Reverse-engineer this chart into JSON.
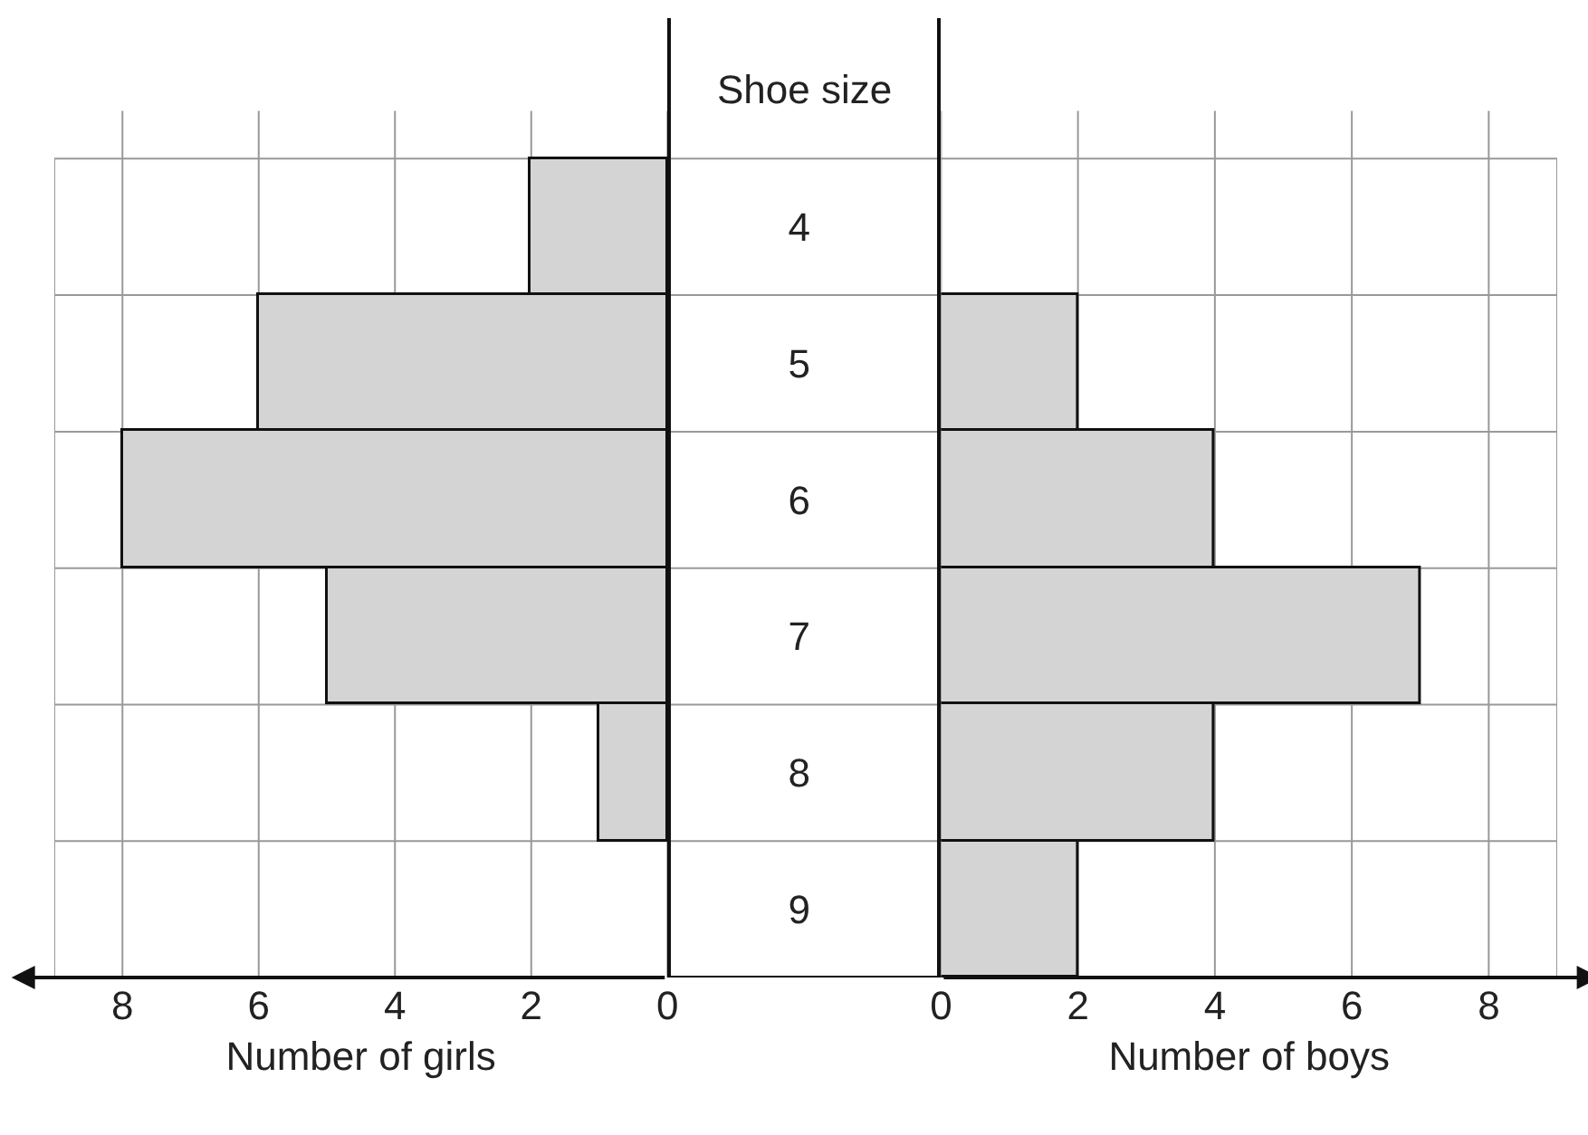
{
  "chart_data": [
    {
      "type": "bar",
      "orientation": "horizontal",
      "categories": [
        "4",
        "5",
        "6",
        "7",
        "8",
        "9"
      ],
      "xlabel": "Number of girls",
      "xlim": [
        9,
        0
      ],
      "xticks": [
        8,
        6,
        4,
        2,
        0
      ],
      "tick_labels": "x",
      "grid": true,
      "series": [
        {
          "color": "#d4d4d4",
          "values": [
            2,
            6,
            8,
            5,
            1,
            0
          ]
        }
      ]
    },
    {
      "type": "bar",
      "orientation": "horizontal",
      "categories": [
        "4",
        "5",
        "6",
        "7",
        "8",
        "9"
      ],
      "xlabel": "Number of boys",
      "ylabel": "Shoe size",
      "xlim": [
        0,
        9
      ],
      "xticks": [
        0,
        2,
        4,
        6,
        8
      ],
      "grid": true,
      "series": [
        {
          "color": "#d4d4d4",
          "values": [
            0,
            2,
            4,
            7,
            4,
            2
          ]
        }
      ]
    }
  ]
}
